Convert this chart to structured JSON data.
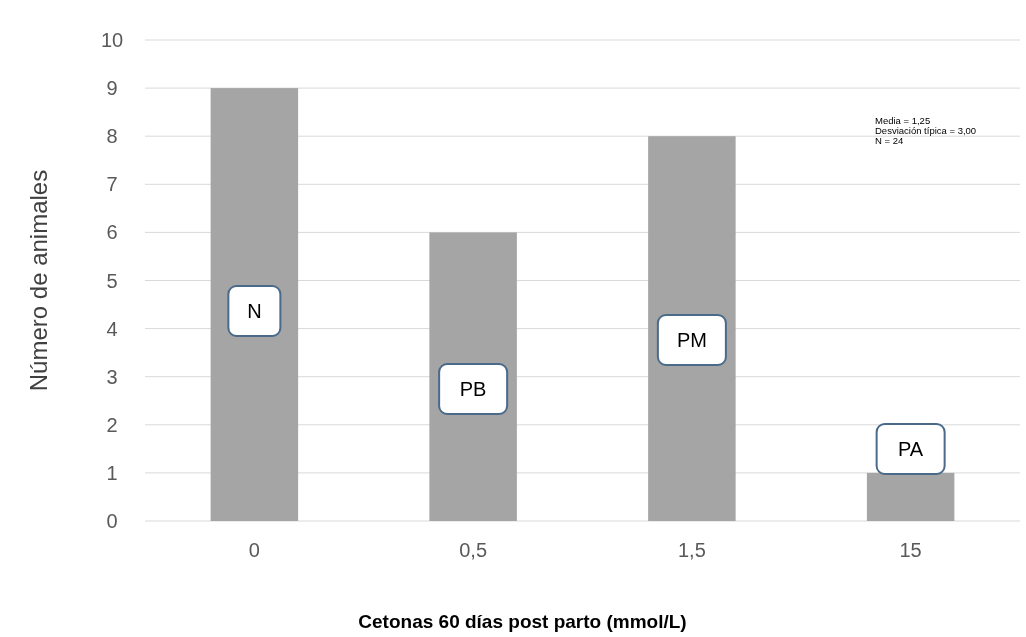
{
  "chart_data": {
    "type": "bar",
    "xlabel": "Cetonas 60 días post parto (mmol/L)",
    "ylabel": "Número de animales",
    "categories": [
      "0",
      "0,5",
      "1,5",
      "15"
    ],
    "values": [
      9,
      6,
      8,
      1
    ],
    "color": "#a5a5a5",
    "ylim": [
      0,
      10
    ],
    "yticks": [
      0,
      1,
      2,
      3,
      4,
      5,
      6,
      7,
      8,
      9,
      10
    ],
    "grid": "y",
    "annotations": [
      "N",
      "PB",
      "PM",
      "PA",
      "Media = 1,25",
      "Desviación típica = 3,00",
      "N = 24"
    ]
  }
}
